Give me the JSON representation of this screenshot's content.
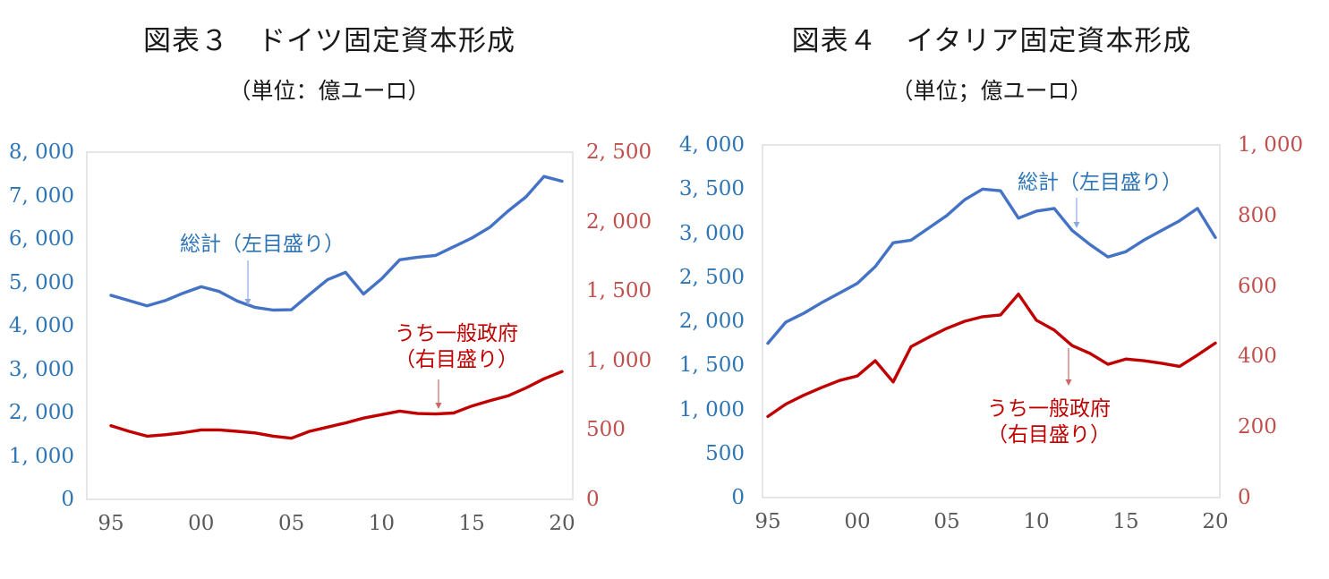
{
  "page": {
    "background": "#ffffff"
  },
  "chart_data": [
    {
      "id": "germany",
      "type": "line",
      "title": "図表３　ドイツ固定資本形成",
      "subtitle": "（単位：億ユーロ）",
      "x": [
        1995,
        1996,
        1997,
        1998,
        1999,
        2000,
        2001,
        2002,
        2003,
        2004,
        2005,
        2006,
        2007,
        2008,
        2009,
        2010,
        2011,
        2012,
        2013,
        2014,
        2015,
        2016,
        2017,
        2018,
        2019,
        2020
      ],
      "x_tick_labels": [
        "95",
        "00",
        "05",
        "10",
        "15",
        "20"
      ],
      "left_axis": {
        "min": 0,
        "max": 8000,
        "tick_labels": [
          "0",
          "1, 000",
          "2, 000",
          "3, 000",
          "4, 000",
          "5, 000",
          "6, 000",
          "7, 000",
          "8, 000"
        ],
        "color": "#2E75B6"
      },
      "right_axis": {
        "min": 0,
        "max": 2500,
        "tick_labels": [
          "0",
          "500",
          "1, 000",
          "1, 500",
          "2, 000",
          "2, 500"
        ],
        "color": "#C0504D"
      },
      "series": [
        {
          "name": "総計",
          "axis": "left",
          "color": "#4472C4",
          "values": [
            4700,
            4580,
            4460,
            4580,
            4750,
            4900,
            4790,
            4570,
            4420,
            4360,
            4370,
            4720,
            5060,
            5230,
            4730,
            5080,
            5520,
            5580,
            5620,
            5820,
            6020,
            6270,
            6640,
            6970,
            7440,
            7330
          ]
        },
        {
          "name": "うち一般政府",
          "axis": "right",
          "color": "#C00000",
          "values": [
            530,
            490,
            455,
            465,
            480,
            500,
            500,
            490,
            478,
            455,
            440,
            490,
            520,
            550,
            585,
            610,
            635,
            618,
            615,
            622,
            672,
            710,
            745,
            802,
            868,
            920
          ]
        }
      ],
      "annotations": {
        "total": {
          "label": "総計（左目盛り）"
        },
        "gov": {
          "line1": "うち一般政府",
          "line2": "（右目盛り）"
        }
      },
      "grid": "off",
      "legend": "none"
    },
    {
      "id": "italy",
      "type": "line",
      "title": "図表４　イタリア固定資本形成",
      "subtitle": "（単位；億ユーロ）",
      "x": [
        1995,
        1996,
        1997,
        1998,
        1999,
        2000,
        2001,
        2002,
        2003,
        2004,
        2005,
        2006,
        2007,
        2008,
        2009,
        2010,
        2011,
        2012,
        2013,
        2014,
        2015,
        2016,
        2017,
        2018,
        2019,
        2020
      ],
      "x_tick_labels": [
        "95",
        "00",
        "05",
        "10",
        "15",
        "20"
      ],
      "left_axis": {
        "min": 0,
        "max": 4000,
        "tick_labels": [
          "0",
          "500",
          "1, 000",
          "1, 500",
          "2, 000",
          "2, 500",
          "3, 000",
          "3, 500",
          "4, 000"
        ],
        "color": "#2E75B6"
      },
      "right_axis": {
        "min": 0,
        "max": 1000,
        "tick_labels": [
          "0",
          "200",
          "400",
          "600",
          "800",
          "1, 000"
        ],
        "color": "#C0504D"
      },
      "series": [
        {
          "name": "総計",
          "axis": "left",
          "color": "#4472C4",
          "values": [
            1750,
            1990,
            2090,
            2210,
            2320,
            2430,
            2620,
            2890,
            2920,
            3060,
            3200,
            3380,
            3500,
            3480,
            3170,
            3250,
            3280,
            3030,
            2870,
            2730,
            2790,
            2920,
            3030,
            3140,
            3280,
            2950
          ]
        },
        {
          "name": "うち一般政府",
          "axis": "right",
          "color": "#C00000",
          "values": [
            230,
            265,
            290,
            312,
            332,
            345,
            388,
            328,
            428,
            455,
            480,
            500,
            513,
            518,
            577,
            503,
            475,
            431,
            409,
            378,
            393,
            388,
            381,
            372,
            404,
            438
          ]
        }
      ],
      "annotations": {
        "total": {
          "label": "総計（左目盛り）"
        },
        "gov": {
          "line1": "うち一般政府",
          "line2": "（右目盛り）"
        }
      },
      "grid": "off",
      "legend": "none"
    }
  ]
}
